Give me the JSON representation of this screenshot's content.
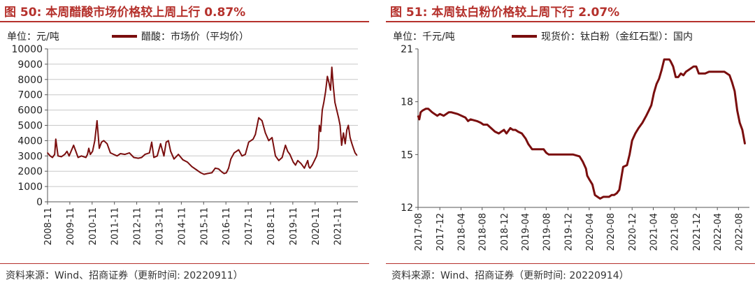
{
  "colors": {
    "accent": "#b5312c",
    "series": "#7a0e0e",
    "grid": "#c8c8c8"
  },
  "left": {
    "title": "图 50:  本周醋酸市场价格较上周上行 0.87%",
    "source": "资料来源：Wind、招商证券（更新时间: 20220911）"
  },
  "right": {
    "title": "图 51:  本周钛白粉价格较上周下行 2.07%",
    "source": "资料来源：Wind、招商证券（更新时间: 20220914）"
  },
  "chart_data": [
    {
      "type": "line",
      "unit_label": "单位：元/吨",
      "ylim": [
        0,
        10000
      ],
      "yticks": [
        0,
        1000,
        2000,
        3000,
        4000,
        5000,
        6000,
        7000,
        8000,
        9000,
        10000
      ],
      "xlim": [
        2008.83,
        2022.75
      ],
      "xticks": [
        {
          "label": "2008-11",
          "pos": 2008.83
        },
        {
          "label": "2009-11",
          "pos": 2009.83
        },
        {
          "label": "2010-11",
          "pos": 2010.83
        },
        {
          "label": "2011-11",
          "pos": 2011.83
        },
        {
          "label": "2012-11",
          "pos": 2012.83
        },
        {
          "label": "2013-11",
          "pos": 2013.83
        },
        {
          "label": "2014-11",
          "pos": 2014.83
        },
        {
          "label": "2015-11",
          "pos": 2015.83
        },
        {
          "label": "2016-11",
          "pos": 2016.83
        },
        {
          "label": "2017-11",
          "pos": 2017.83
        },
        {
          "label": "2018-11",
          "pos": 2018.83
        },
        {
          "label": "2019-11",
          "pos": 2019.83
        },
        {
          "label": "2020-11",
          "pos": 2020.83
        },
        {
          "label": "2021-11",
          "pos": 2021.83
        }
      ],
      "grid": true,
      "legend_position": "top",
      "series": [
        {
          "name": "醋酸：市场价（平均价）",
          "x": [
            2008.83,
            2008.95,
            2009.05,
            2009.15,
            2009.2,
            2009.3,
            2009.45,
            2009.6,
            2009.7,
            2009.8,
            2010.0,
            2010.2,
            2010.35,
            2010.45,
            2010.55,
            2010.62,
            2010.68,
            2010.75,
            2010.85,
            2010.95,
            2011.05,
            2011.15,
            2011.25,
            2011.35,
            2011.5,
            2011.65,
            2011.8,
            2011.95,
            2012.1,
            2012.3,
            2012.5,
            2012.7,
            2012.9,
            2013.05,
            2013.2,
            2013.4,
            2013.5,
            2013.6,
            2013.75,
            2013.9,
            2014.05,
            2014.15,
            2014.25,
            2014.35,
            2014.5,
            2014.7,
            2014.9,
            2015.1,
            2015.3,
            2015.5,
            2015.7,
            2015.85,
            2016.0,
            2016.2,
            2016.35,
            2016.5,
            2016.65,
            2016.75,
            2016.85,
            2016.95,
            2017.05,
            2017.2,
            2017.4,
            2017.55,
            2017.7,
            2017.85,
            2017.95,
            2018.05,
            2018.15,
            2018.3,
            2018.45,
            2018.6,
            2018.75,
            2018.9,
            2019.05,
            2019.2,
            2019.35,
            2019.5,
            2019.6,
            2019.7,
            2019.85,
            2019.95,
            2020.05,
            2020.2,
            2020.35,
            2020.5,
            2020.55,
            2020.6,
            2020.7,
            2020.8,
            2020.9,
            2020.97,
            2021.02,
            2021.08,
            2021.15,
            2021.22,
            2021.3,
            2021.38,
            2021.45,
            2021.52,
            2021.58,
            2021.65,
            2021.72,
            2021.8,
            2021.88,
            2021.95,
            2022.02,
            2022.1,
            2022.18,
            2022.25,
            2022.32,
            2022.4,
            2022.48,
            2022.55,
            2022.62,
            2022.7
          ],
          "values": [
            3200,
            3000,
            2900,
            3100,
            4100,
            3000,
            2950,
            3100,
            3300,
            3000,
            3700,
            2900,
            3000,
            2950,
            2900,
            3100,
            3500,
            3100,
            3300,
            4000,
            5300,
            3500,
            3900,
            4000,
            3800,
            3200,
            3100,
            3000,
            3150,
            3100,
            3200,
            2900,
            2850,
            2900,
            3100,
            3200,
            3900,
            2900,
            3000,
            3800,
            3000,
            3900,
            4000,
            3300,
            2800,
            3100,
            2750,
            2600,
            2300,
            2100,
            1900,
            1800,
            1850,
            1900,
            2200,
            2150,
            1950,
            1850,
            1900,
            2200,
            2800,
            3200,
            3400,
            3000,
            3100,
            3900,
            4000,
            4100,
            4400,
            5500,
            5300,
            4500,
            4000,
            4200,
            3000,
            2700,
            2900,
            3700,
            3300,
            3100,
            2600,
            2400,
            2700,
            2500,
            2200,
            2700,
            2300,
            2200,
            2400,
            2700,
            3000,
            3500,
            5000,
            4600,
            6000,
            6500,
            7200,
            8200,
            7800,
            7300,
            8800,
            7500,
            6500,
            6000,
            5500,
            5000,
            3700,
            4500,
            3800,
            4700,
            5000,
            4200,
            3800,
            3500,
            3200,
            3050
          ]
        }
      ]
    },
    {
      "type": "line",
      "unit_label": "单位：千元/吨",
      "ylim": [
        12,
        21
      ],
      "yticks": [
        12,
        15,
        18,
        21
      ],
      "xlim": [
        2017.58,
        2022.75
      ],
      "xticks": [
        {
          "label": "2017-08",
          "pos": 2017.58
        },
        {
          "label": "2017-12",
          "pos": 2017.92
        },
        {
          "label": "2018-04",
          "pos": 2018.25
        },
        {
          "label": "2018-08",
          "pos": 2018.58
        },
        {
          "label": "2018-12",
          "pos": 2018.92
        },
        {
          "label": "2019-04",
          "pos": 2019.25
        },
        {
          "label": "2019-08",
          "pos": 2019.58
        },
        {
          "label": "2019-12",
          "pos": 2019.92
        },
        {
          "label": "2020-04",
          "pos": 2020.25
        },
        {
          "label": "2020-08",
          "pos": 2020.58
        },
        {
          "label": "2020-12",
          "pos": 2020.92
        },
        {
          "label": "2021-04",
          "pos": 2021.25
        },
        {
          "label": "2021-08",
          "pos": 2021.58
        },
        {
          "label": "2021-12",
          "pos": 2021.92
        },
        {
          "label": "2022-04",
          "pos": 2022.25
        },
        {
          "label": "2022-08",
          "pos": 2022.58
        }
      ],
      "grid": false,
      "legend_position": "top",
      "series": [
        {
          "name": "现货价：钛白粉（金红石型）：国内",
          "x": [
            2017.58,
            2017.6,
            2017.62,
            2017.65,
            2017.7,
            2017.74,
            2017.8,
            2017.84,
            2017.88,
            2017.92,
            2017.98,
            2018.06,
            2018.1,
            2018.2,
            2018.32,
            2018.36,
            2018.4,
            2018.5,
            2018.56,
            2018.6,
            2018.66,
            2018.72,
            2018.78,
            2018.84,
            2018.88,
            2018.92,
            2018.96,
            2019.02,
            2019.06,
            2019.1,
            2019.14,
            2019.2,
            2019.26,
            2019.3,
            2019.36,
            2019.42,
            2019.5,
            2019.54,
            2019.58,
            2019.62,
            2019.7,
            2019.78,
            2019.84,
            2019.9,
            2020.0,
            2020.1,
            2020.15,
            2020.2,
            2020.22,
            2020.25,
            2020.3,
            2020.34,
            2020.38,
            2020.42,
            2020.47,
            2020.52,
            2020.56,
            2020.6,
            2020.64,
            2020.68,
            2020.72,
            2020.78,
            2020.84,
            2020.88,
            2020.92,
            2020.97,
            2021.02,
            2021.08,
            2021.14,
            2021.18,
            2021.22,
            2021.26,
            2021.3,
            2021.34,
            2021.38,
            2021.42,
            2021.46,
            2021.5,
            2021.52,
            2021.56,
            2021.6,
            2021.64,
            2021.68,
            2021.72,
            2021.76,
            2021.8,
            2021.84,
            2021.88,
            2021.92,
            2021.96,
            2022.0,
            2022.06,
            2022.12,
            2022.18,
            2022.24,
            2022.3,
            2022.36,
            2022.4,
            2022.44,
            2022.48,
            2022.52,
            2022.56,
            2022.6,
            2022.64,
            2022.68
          ],
          "values": [
            17.2,
            17.0,
            17.4,
            17.5,
            17.6,
            17.6,
            17.4,
            17.3,
            17.2,
            17.3,
            17.2,
            17.4,
            17.4,
            17.3,
            17.1,
            16.9,
            17.0,
            16.9,
            16.8,
            16.7,
            16.7,
            16.5,
            16.3,
            16.2,
            16.3,
            16.4,
            16.2,
            16.5,
            16.4,
            16.4,
            16.3,
            16.2,
            15.9,
            15.6,
            15.3,
            15.3,
            15.3,
            15.3,
            15.1,
            15.0,
            15.0,
            15.0,
            15.0,
            15.0,
            15.0,
            14.9,
            14.6,
            14.2,
            13.8,
            13.6,
            13.3,
            12.7,
            12.6,
            12.5,
            12.6,
            12.6,
            12.6,
            12.7,
            12.7,
            12.8,
            13.0,
            14.3,
            14.4,
            15.0,
            15.8,
            16.2,
            16.5,
            16.8,
            17.2,
            17.5,
            17.8,
            18.5,
            19.0,
            19.3,
            19.8,
            20.4,
            20.4,
            20.4,
            20.3,
            20.0,
            19.4,
            19.4,
            19.6,
            19.5,
            19.7,
            19.8,
            19.9,
            20.0,
            20.0,
            19.6,
            19.6,
            19.6,
            19.7,
            19.7,
            19.7,
            19.7,
            19.7,
            19.6,
            19.5,
            19.1,
            18.6,
            17.5,
            16.8,
            16.4,
            15.6
          ]
        }
      ]
    }
  ]
}
